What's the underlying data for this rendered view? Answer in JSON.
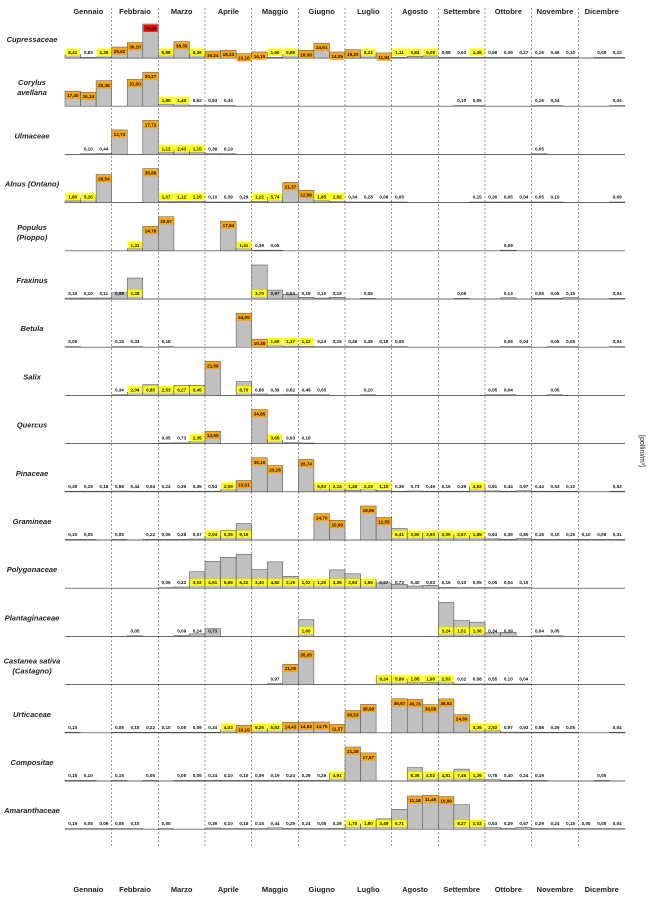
{
  "chart_data": {
    "type": "bar",
    "months": [
      "Gennaio",
      "Febbraio",
      "Marzo",
      "Aprile",
      "Maggio",
      "Giugno",
      "Luglio",
      "Agosto",
      "Settembre",
      "Ottobre",
      "Novembre",
      "Dicembre"
    ],
    "unit": "[pollini/m³]",
    "level_colors": {
      "low": "#ffff00",
      "medium": "#ffa500",
      "high": "#ff0000",
      "bar": "#c0c0c0"
    },
    "taxa": [
      {
        "name": [
          "Cupressaceae"
        ],
        "values": [
          "8,41",
          "0,83",
          "2,39",
          "25,62",
          "36,10",
          "79,46",
          "5,88",
          "38,35",
          "8,36",
          "16,24",
          "18,23",
          "10,16",
          "14,15",
          "1,60",
          "8,88",
          "18,08",
          "34,61",
          "14,05",
          "19,20",
          "8,22",
          "11,84",
          "1,11",
          "3,84",
          "5,08",
          "0,58",
          "0,63",
          "1,45",
          "0,58",
          "0,39",
          "0,27",
          "0,15",
          "0,49",
          "0,10",
          "",
          "0,08",
          "0,13"
        ]
      },
      {
        "name": [
          "Corylus",
          "avellana"
        ],
        "values": [
          "17,40",
          "16,14",
          "29,36",
          "",
          "31,00",
          "39,27",
          "1,85",
          "1,40",
          "0,62",
          "0,53",
          "0,33",
          "",
          "",
          "",
          "",
          "",
          "",
          "",
          "",
          "",
          "",
          "",
          "",
          "",
          "",
          "0,10",
          "0,05",
          "",
          "",
          "",
          "0,15",
          "0,24",
          "",
          "",
          "",
          "0,04"
        ]
      },
      {
        "name": [
          "Ulmaceae"
        ],
        "values": [
          "",
          "0,10",
          "0,44",
          "12,74",
          "",
          "17,72",
          "1,12",
          "2,43",
          "1,15",
          "0,39",
          "0,19",
          "",
          "",
          "",
          "",
          "",
          "",
          "",
          "",
          "",
          "",
          "",
          "",
          "",
          "",
          "",
          "",
          "",
          "",
          "",
          "0,05",
          "",
          "",
          "",
          "",
          ""
        ]
      },
      {
        "name": [
          "Alnus (Ontano)"
        ],
        "values": [
          "1,80",
          "5,26",
          "29,54",
          "",
          "",
          "35,86",
          "1,07",
          "1,12",
          "1,10",
          "0,10",
          "0,39",
          "0,29",
          "1,22",
          "5,74",
          "21,37",
          "12,98",
          "1,85",
          "1,02",
          "0,34",
          "0,28",
          "0,06",
          "0,05",
          "",
          "",
          "",
          "",
          "0,15",
          "0,30",
          "0,05",
          "0,04",
          "0,05",
          "0,10",
          "",
          "",
          "",
          "0,09"
        ]
      },
      {
        "name": [
          "Populus",
          "(Pioppo)"
        ],
        "values": [
          "",
          "",
          "",
          "",
          "1,31",
          "14,78",
          "20,57",
          "",
          "",
          "",
          "17,94",
          "1,41",
          "0,39",
          "0,05",
          "",
          "",
          "",
          "",
          "",
          "",
          "",
          "",
          "",
          "",
          "",
          "",
          "",
          "",
          "0,09",
          "",
          "",
          "",
          "",
          "",
          "",
          ""
        ]
      },
      {
        "name": [
          "Fraxinus"
        ],
        "values": [
          "0,10",
          "0,10",
          "0,11",
          "0,68",
          "2,28",
          "",
          "",
          "",
          "",
          "",
          "",
          "",
          "3,70",
          "0,97",
          "0,53",
          "0,19",
          "0,10",
          "0,19",
          "",
          "0,05",
          "",
          "",
          "",
          "",
          "",
          "0,05",
          "",
          "",
          "0,13",
          "",
          "0,05",
          "0,05",
          "0,15",
          "",
          "",
          "0,04"
        ]
      },
      {
        "name": [
          "Betula"
        ],
        "values": [
          "0,05",
          "",
          "",
          "0,15",
          "0,34",
          "",
          "0,18",
          "",
          "",
          "",
          "",
          "44,09",
          "10,45",
          "1,60",
          "1,37",
          "1,22",
          "0,24",
          "0,15",
          "0,49",
          "0,49",
          "0,18",
          "0,05",
          "",
          "",
          "",
          "",
          "",
          "",
          "0,05",
          "0,04",
          "",
          "0,05",
          "0,05",
          "",
          "",
          "0,04"
        ]
      },
      {
        "name": [
          "Salix"
        ],
        "values": [
          "",
          "",
          "",
          "0,34",
          "2,04",
          "6,85",
          "2,53",
          "6,27",
          "6,45",
          "21,58",
          "",
          "8,70",
          "0,88",
          "0,39",
          "0,62",
          "0,49",
          "0,05",
          "",
          "",
          "0,10",
          "",
          "",
          "",
          "",
          "",
          "",
          "",
          "0,05",
          "0,04",
          "",
          "",
          "0,05",
          "",
          "",
          "",
          ""
        ]
      },
      {
        "name": [
          "Quercus"
        ],
        "values": [
          "",
          "",
          "",
          "",
          "",
          "",
          "0,05",
          "0,73",
          "2,35",
          "12,69",
          "",
          "",
          "34,85",
          "3,65",
          "0,93",
          "0,19",
          "",
          "",
          "",
          "",
          "",
          "",
          "",
          "",
          "",
          "",
          "",
          "",
          "",
          "",
          "",
          "",
          "",
          "",
          "",
          ""
        ]
      },
      {
        "name": [
          "Pinaceae"
        ],
        "values": [
          "0,49",
          "0,19",
          "0,18",
          "0,68",
          "0,44",
          "0,54",
          "0,24",
          "0,35",
          "0,35",
          "0,53",
          "2,09",
          "10,01",
          "30,19",
          "23,28",
          "",
          "28,74",
          "5,93",
          "2,24",
          "1,45",
          "2,19",
          "1,10",
          "0,39",
          "0,73",
          "0,49",
          "0,15",
          "0,39",
          "4,52",
          "0,81",
          "0,44",
          "0,97",
          "0,44",
          "0,53",
          "0,10",
          "",
          "",
          "0,53"
        ]
      },
      {
        "name": [
          "Gramineae"
        ],
        "values": [
          "0,10",
          "0,05",
          "",
          "0,05",
          "",
          "0,22",
          "0,05",
          "0,28",
          "0,57",
          "2,04",
          "5,35",
          "9,19",
          "",
          "",
          "",
          "",
          "14,70",
          "10,99",
          "",
          "18,96",
          "12,55",
          "6,41",
          "3,90",
          "3,93",
          "3,09",
          "2,67",
          "1,85",
          "0,63",
          "0,39",
          "0,80",
          "0,15",
          "0,10",
          "0,15",
          "0,10",
          "0,08",
          "0,31"
        ]
      },
      {
        "name": [
          "Polygonaceae"
        ],
        "values": [
          "",
          "",
          "",
          "",
          "",
          "",
          "0,05",
          "0,22",
          "3,02",
          "4,91",
          "5,66",
          "6,22",
          "3,40",
          "4,82",
          "2,19",
          "1,02",
          "1,26",
          "3,35",
          "2,63",
          "1,55",
          "0,97",
          "0,73",
          "0,40",
          "0,53",
          "0,15",
          "0,10",
          "0,05",
          "0,05",
          "0,04",
          "0,10",
          "",
          "",
          "",
          "",
          "",
          ""
        ]
      },
      {
        "name": [
          "Plantaginaceae"
        ],
        "values": [
          "",
          "",
          "",
          "",
          "0,05",
          "",
          "",
          "0,09",
          "0,24",
          "0,73",
          "",
          "",
          "",
          "",
          "",
          "1,60",
          "",
          "",
          "",
          "",
          "",
          "",
          "",
          "",
          "3,24",
          "1,51",
          "1,36",
          "0,34",
          "0,39",
          "",
          "0,04",
          "0,05",
          "",
          "",
          "",
          ""
        ]
      },
      {
        "name": [
          "Castanea sativa",
          "(Castagno)"
        ],
        "values": [
          "",
          "",
          "",
          "",
          "",
          "",
          "",
          "",
          "",
          "",
          "",
          "",
          "",
          "0,97",
          "21,00",
          "35,05",
          "",
          "",
          "",
          "",
          "9,24",
          "5,89",
          "1,85",
          "1,90",
          "2,53",
          "0,02",
          "0,58",
          "0,55",
          "0,10",
          "0,04",
          "",
          "",
          "",
          "",
          "",
          ""
        ]
      },
      {
        "name": [
          "Urticaceae"
        ],
        "values": [
          "0,10",
          "",
          "",
          "0,05",
          "0,15",
          "0,22",
          "0,10",
          "0,05",
          "0,09",
          "0,34",
          "4,03",
          "10,15",
          "5,25",
          "5,83",
          "14,43",
          "14,63",
          "14,78",
          "11,57",
          "30,53",
          "38,99",
          "",
          "46,67",
          "45,76",
          "38,56",
          "46,52",
          "24,89",
          "3,35",
          "2,92",
          "0,97",
          "0,93",
          "0,58",
          "0,29",
          "0,05",
          "",
          "",
          "0,04"
        ]
      },
      {
        "name": [
          "Compositae"
        ],
        "values": [
          "0,15",
          "0,10",
          "",
          "0,15",
          "",
          "0,05",
          "",
          "0,05",
          "0,05",
          "0,24",
          "0,10",
          "0,10",
          "0,09",
          "0,19",
          "0,24",
          "0,29",
          "0,29",
          "4,91",
          "21,28",
          "17,57",
          "",
          "",
          "8,36",
          "4,02",
          "4,81",
          "7,46",
          "1,26",
          "0,78",
          "0,40",
          "0,24",
          "0,19",
          "",
          "",
          "",
          "0,05",
          ""
        ]
      },
      {
        "name": [
          "Amaranthaceae"
        ],
        "values": [
          "0,19",
          "0,05",
          "0,09",
          "0,05",
          "0,10",
          "",
          "0,05",
          "",
          "",
          "0,39",
          "0,10",
          "0,15",
          "0,15",
          "0,44",
          "0,29",
          "0,24",
          "0,05",
          "0,29",
          "1,70",
          "1,80",
          "3,49",
          "6,71",
          "11,18",
          "11,45",
          "10,99",
          "8,27",
          "2,02",
          "0,53",
          "0,29",
          "0,57",
          "0,29",
          "0,24",
          "0,15",
          "0,05",
          "0,08",
          "0,04"
        ]
      }
    ]
  }
}
